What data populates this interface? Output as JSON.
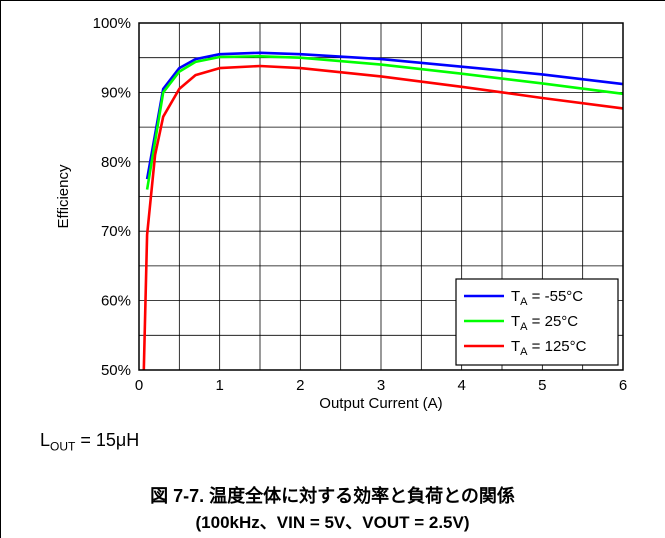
{
  "chart_data": {
    "type": "line",
    "xlabel": "Output Current (A)",
    "ylabel": "Efficiency",
    "xlim": [
      0,
      6
    ],
    "ylim": [
      50,
      100
    ],
    "x_ticks": [
      "0",
      "1",
      "2",
      "3",
      "4",
      "5",
      "6"
    ],
    "y_ticks": [
      "50%",
      "60%",
      "70%",
      "80%",
      "90%",
      "100%"
    ],
    "grid": true,
    "legend_position": "bottom-right",
    "series": [
      {
        "name_main": "T",
        "name_sub": "A",
        "name_rest": " = -55°C",
        "color": "#0000ff",
        "x": [
          0.1,
          0.3,
          0.5,
          0.7,
          1.0,
          1.5,
          2.0,
          3.0,
          4.0,
          5.0,
          6.0
        ],
        "y": [
          77.5,
          90.5,
          93.5,
          94.8,
          95.5,
          95.7,
          95.5,
          94.8,
          93.7,
          92.6,
          91.2
        ]
      },
      {
        "name_main": "T",
        "name_sub": "A",
        "name_rest": " = 25°C",
        "color": "#00ff00",
        "x": [
          0.1,
          0.3,
          0.5,
          0.7,
          1.0,
          1.5,
          2.0,
          3.0,
          4.0,
          5.0,
          6.0
        ],
        "y": [
          76.0,
          90.0,
          93.0,
          94.4,
          95.1,
          95.2,
          95.0,
          94.0,
          92.7,
          91.3,
          89.8
        ]
      },
      {
        "name_main": "T",
        "name_sub": "A",
        "name_rest": " = 125°C",
        "color": "#ff0000",
        "x": [
          0.06,
          0.1,
          0.2,
          0.3,
          0.5,
          0.7,
          1.0,
          1.5,
          2.0,
          3.0,
          4.0,
          5.0,
          6.0
        ],
        "y": [
          50.0,
          69.5,
          81.0,
          86.5,
          90.5,
          92.5,
          93.5,
          93.8,
          93.5,
          92.3,
          90.8,
          89.2,
          87.7
        ]
      }
    ]
  },
  "note": {
    "main": "L",
    "sub": "OUT",
    "rest": " = 15μH"
  },
  "caption": {
    "line1": "図 7-7. 温度全体に対する効率と負荷との関係",
    "line2": "(100kHz、VIN = 5V、VOUT = 2.5V)"
  }
}
